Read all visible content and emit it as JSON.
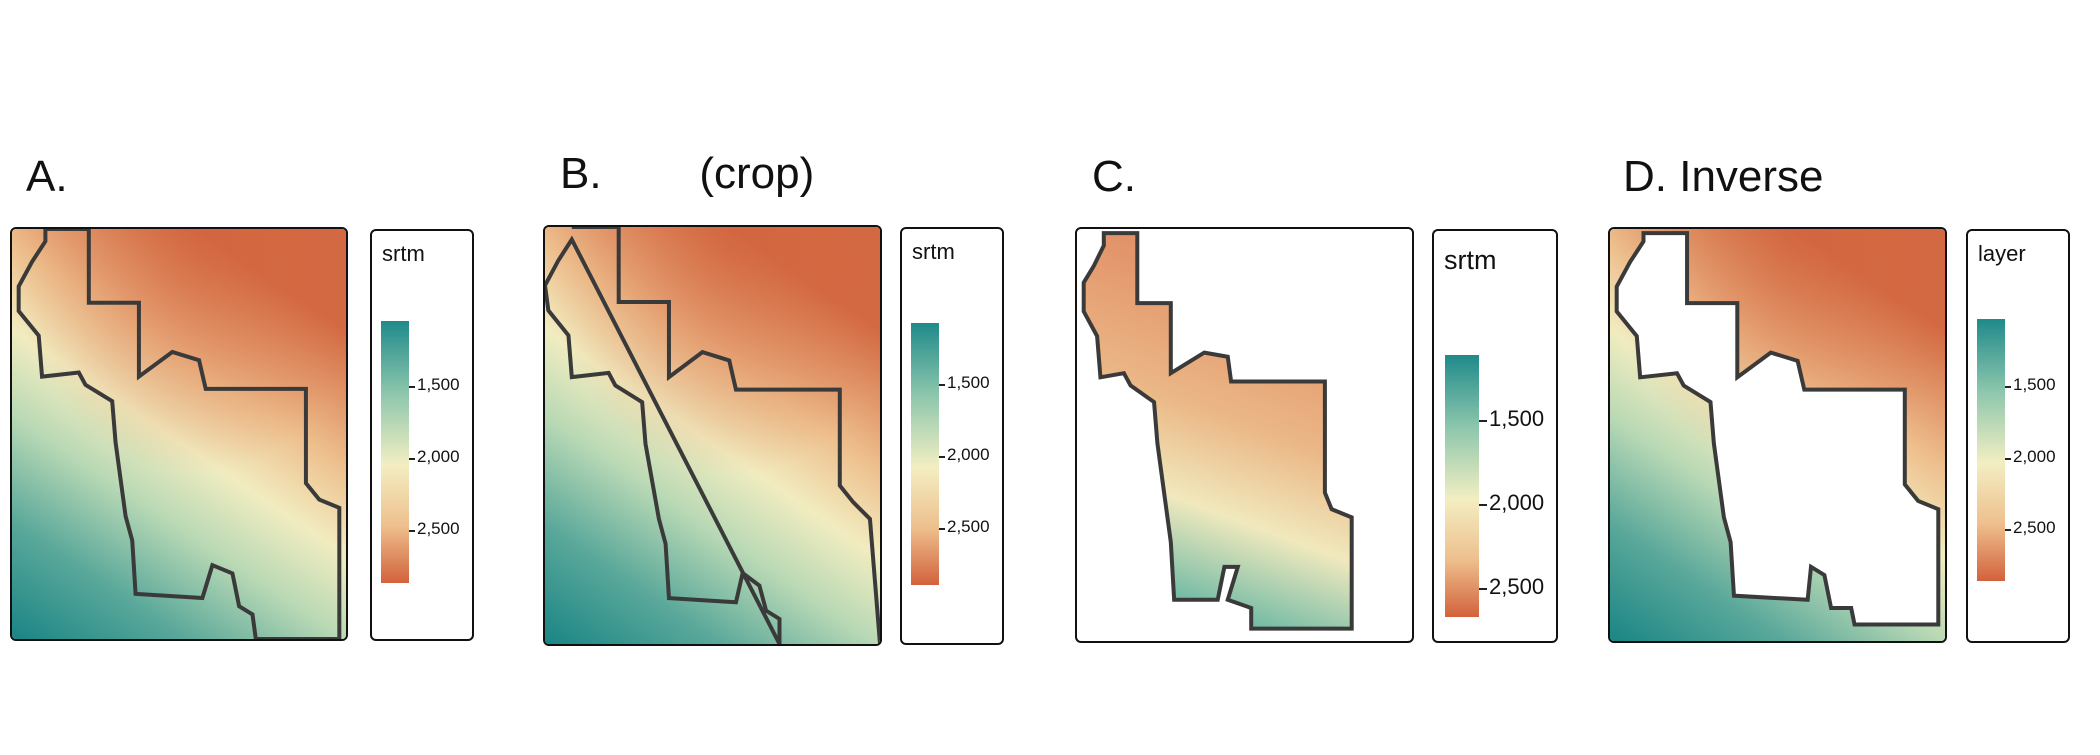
{
  "colors": {
    "teal": "#1f8a8a",
    "mid_green": "#8ec7ad",
    "cream": "#f3eec2",
    "tan": "#eec08e",
    "orange": "#d2623c",
    "boundary": "#3a3a3a"
  },
  "panels": [
    {
      "id": "a",
      "title": "A.",
      "legend": {
        "title": "srtm",
        "labels": [
          "1,500",
          "2,000",
          "2,500"
        ]
      }
    },
    {
      "id": "b",
      "title": "B.        (crop)",
      "legend": {
        "title": "srtm",
        "labels": [
          "1,500",
          "2,000",
          "2,500"
        ]
      }
    },
    {
      "id": "c",
      "title": "C.",
      "legend": {
        "title": "srtm",
        "labels": [
          "1,500",
          "2,000",
          "2,500"
        ]
      }
    },
    {
      "id": "d",
      "title": "D. Inverse",
      "legend": {
        "title": "layer",
        "labels": [
          "1,500",
          "2,000",
          "2,500"
        ]
      }
    }
  ]
}
